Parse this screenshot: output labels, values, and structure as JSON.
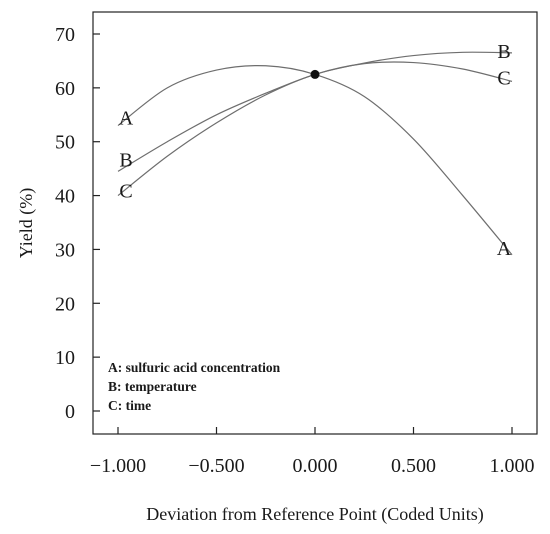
{
  "chart_data": {
    "type": "line",
    "xlabel": "Deviation from Reference Point (Coded Units)",
    "ylabel": "Yield (%)",
    "xlim": [
      -1.0,
      1.0
    ],
    "ylim": [
      0,
      70
    ],
    "x_ticks": [
      -1.0,
      -0.5,
      0.0,
      0.5,
      1.0
    ],
    "x_tick_labels": [
      "−1.000",
      "−0.500",
      "0.000",
      "0.500",
      "1.000"
    ],
    "y_ticks": [
      0,
      10,
      20,
      30,
      40,
      50,
      60,
      70
    ],
    "y_tick_labels": [
      "0",
      "10",
      "20",
      "30",
      "40",
      "50",
      "60",
      "70"
    ],
    "grid": false,
    "reference_point": {
      "x": 0.0,
      "y": 62.5
    },
    "series": [
      {
        "name": "A",
        "x": [
          -1.0,
          -0.75,
          -0.5,
          -0.25,
          0.0,
          0.25,
          0.5,
          0.75,
          1.0
        ],
        "values": [
          53,
          60,
          63.3,
          64.1,
          62.5,
          58.4,
          50.5,
          40,
          29
        ],
        "end_labels": [
          "A",
          "A"
        ]
      },
      {
        "name": "B",
        "x": [
          -1.0,
          -0.75,
          -0.5,
          -0.25,
          0.0,
          0.25,
          0.5,
          0.75,
          1.0
        ],
        "values": [
          44.5,
          50,
          55,
          59,
          62.5,
          64.6,
          66,
          66.6,
          66.5
        ],
        "end_labels": [
          "B",
          "B"
        ]
      },
      {
        "name": "C",
        "x": [
          -1.0,
          -0.75,
          -0.5,
          -0.25,
          0.0,
          0.25,
          0.5,
          0.75,
          1.0
        ],
        "values": [
          40,
          47.3,
          53.5,
          58.7,
          62.5,
          64.5,
          64.7,
          63.5,
          61.2
        ],
        "end_labels": [
          "C",
          "C"
        ]
      }
    ],
    "legend": {
      "placement": "bottom-left",
      "entries": [
        "A: sulfuric acid concentration",
        "B: temperature",
        "C: time"
      ]
    }
  }
}
